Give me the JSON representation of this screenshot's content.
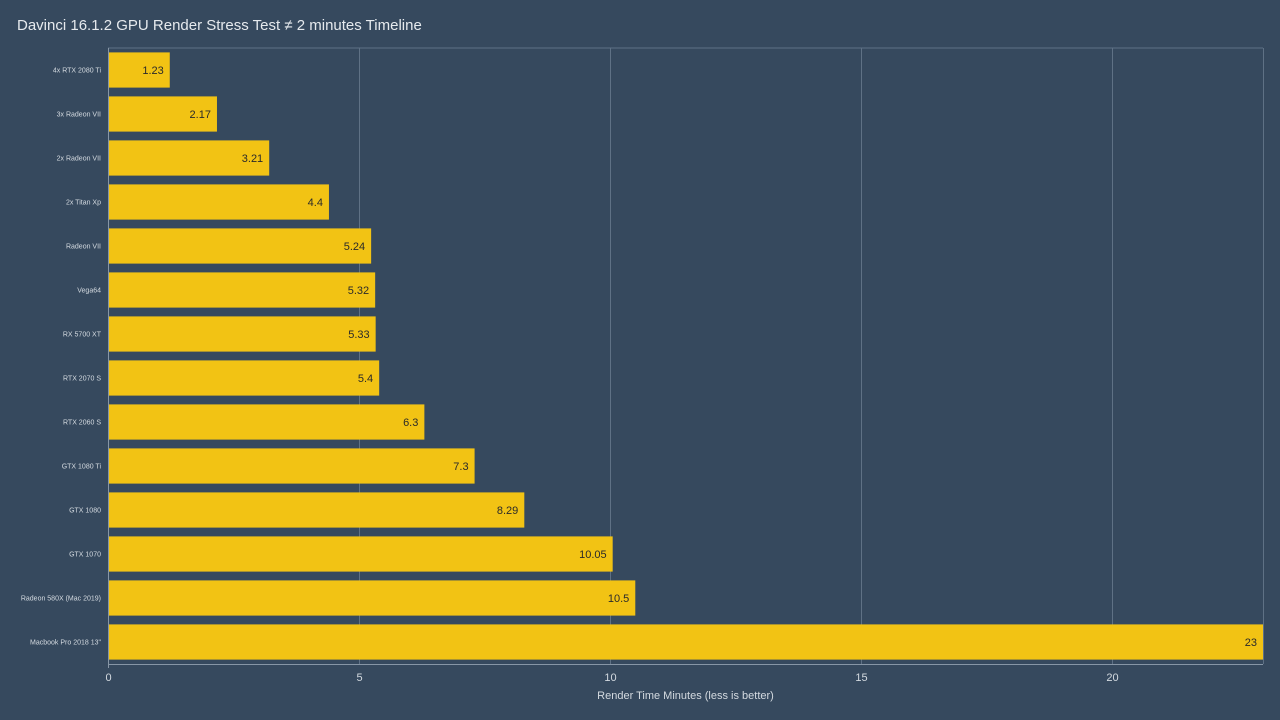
{
  "colors": {
    "background": "#36495e",
    "bar": "#f2c314",
    "grid": "#5f7185",
    "text": "#d4dae0",
    "value_text": "#2a2a2a"
  },
  "chart_data": {
    "type": "bar",
    "orientation": "horizontal",
    "title": "Davinci 16.1.2 GPU Render Stress Test ≠ 2 minutes Timeline",
    "xlabel": "Render Time Minutes (less is better)",
    "ylabel": "",
    "xlim": [
      0,
      23
    ],
    "xticks": [
      0,
      5,
      10,
      15,
      20
    ],
    "grid": true,
    "legend": "none",
    "categories": [
      "4x RTX 2080 Ti",
      "3x Radeon VII",
      "2x Radeon VII",
      "2x Titan Xp",
      "Radeon VII",
      "Vega64",
      "RX 5700 XT",
      "RTX 2070 S",
      "RTX 2060 S",
      "GTX 1080 Ti",
      "GTX 1080",
      "GTX 1070",
      "Radeon 580X (Mac 2019)",
      "Macbook Pro 2018 13\""
    ],
    "values": [
      1.23,
      2.17,
      3.21,
      4.4,
      5.24,
      5.32,
      5.33,
      5.4,
      6.3,
      7.3,
      8.29,
      10.05,
      10.5,
      23
    ],
    "value_labels": [
      "1.23",
      "2.17",
      "3.21",
      "4.4",
      "5.24",
      "5.32",
      "5.33",
      "5.4",
      "6.3",
      "7.3",
      "8.29",
      "10.05",
      "10.5",
      "23"
    ]
  }
}
